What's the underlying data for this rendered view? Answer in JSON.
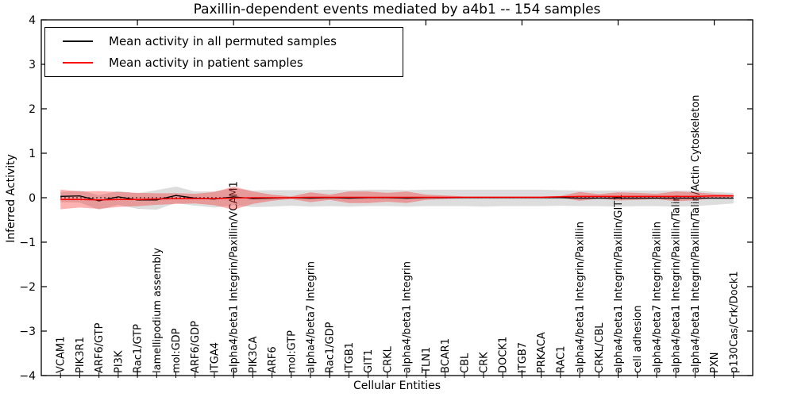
{
  "chart_data": {
    "type": "line",
    "title": "Paxillin-dependent events mediated by a4b1 -- 154 samples",
    "xlabel": "Cellular Entities",
    "ylabel": "Inferred Activity",
    "ylim": [
      -4,
      4
    ],
    "xlim": [
      0,
      37
    ],
    "grid": false,
    "legend_position": "upper-left",
    "yticks": {
      "values": [
        4,
        3,
        2,
        1,
        0,
        -1,
        -2,
        -3,
        -4
      ],
      "labels": [
        "4",
        "3",
        "2",
        "1",
        "0",
        "−1",
        "−2",
        "−3",
        "−4"
      ]
    },
    "x_major_ticks": [
      5,
      10,
      15,
      20,
      25,
      30,
      35
    ],
    "zero_line": {
      "y": 0,
      "style": "dotted",
      "color": "#000000"
    },
    "categories": [
      "VCAM1",
      "PIK3R1",
      "ARF6/GTP",
      "PI3K",
      "Rac1/GTP",
      "lamellipodium assembly",
      "mol:GDP",
      "ARF6/GDP",
      "ITGA4",
      "alpha4/beta1 Integrin/Paxillin/VCAM1",
      "PIK3CA",
      "ARF6",
      "mol:GTP",
      "alpha4/beta7 Integrin",
      "Rac1/GDP",
      "ITGB1",
      "GIT1",
      "CRKL",
      "alpha4/beta1 Integrin",
      "TLN1",
      "BCAR1",
      "CBL",
      "CRK",
      "DOCK1",
      "ITGB7",
      "PRKACA",
      "RAC1",
      "alpha4/beta1 Integrin/Paxillin",
      "CRKL/CBL",
      "alpha4/beta1 Integrin/Paxillin/GIT1",
      "cell adhesion",
      "alpha4/beta7 Integrin/Paxillin",
      "alpha4/beta1 Integrin/Paxillin/Talin",
      "alpha4/beta1 Integrin/Paxillin/Talin/Actin Cytoskeleton",
      "PXN",
      "p130Cas/Crk/Dock1"
    ],
    "series": [
      {
        "name": "Mean activity in all permuted samples",
        "color": "#000000",
        "values": [
          0.03,
          0.04,
          -0.07,
          0.02,
          -0.05,
          -0.05,
          0.05,
          -0.01,
          -0.03,
          0.02,
          -0.02,
          -0.01,
          0.0,
          -0.01,
          0.0,
          -0.01,
          0.0,
          0.0,
          -0.01,
          0.0,
          0.0,
          0.0,
          0.0,
          0.0,
          0.0,
          0.0,
          0.0,
          -0.01,
          -0.01,
          -0.01,
          -0.01,
          -0.01,
          -0.01,
          -0.01,
          -0.01,
          -0.01
        ]
      },
      {
        "name": "Mean activity in patient samples",
        "color": "#ff0000",
        "values": [
          -0.04,
          -0.04,
          -0.05,
          -0.04,
          -0.04,
          -0.03,
          -0.02,
          -0.02,
          -0.02,
          -0.01,
          0.0,
          0.0,
          0.0,
          0.01,
          0.01,
          0.01,
          0.01,
          0.01,
          0.01,
          0.01,
          0.01,
          0.01,
          0.01,
          0.01,
          0.01,
          0.01,
          0.02,
          0.03,
          0.03,
          0.03,
          0.03,
          0.03,
          0.03,
          0.03,
          0.04,
          0.04
        ]
      }
    ],
    "bands": [
      {
        "name": "permuted-samples-spread",
        "color": "#808080",
        "opacity": 0.27,
        "upper": [
          0.13,
          0.16,
          0.06,
          0.15,
          0.1,
          0.17,
          0.25,
          0.14,
          0.14,
          0.21,
          0.16,
          0.17,
          0.17,
          0.17,
          0.18,
          0.17,
          0.18,
          0.18,
          0.17,
          0.18,
          0.18,
          0.18,
          0.18,
          0.18,
          0.18,
          0.18,
          0.17,
          0.16,
          0.16,
          0.16,
          0.16,
          0.16,
          0.16,
          0.16,
          0.13,
          0.11
        ],
        "lower": [
          -0.1,
          -0.11,
          -0.27,
          -0.16,
          -0.25,
          -0.27,
          -0.12,
          -0.18,
          -0.22,
          -0.17,
          -0.21,
          -0.2,
          -0.18,
          -0.2,
          -0.19,
          -0.2,
          -0.19,
          -0.19,
          -0.2,
          -0.19,
          -0.19,
          -0.19,
          -0.2,
          -0.19,
          -0.19,
          -0.19,
          -0.18,
          -0.19,
          -0.19,
          -0.2,
          -0.19,
          -0.19,
          -0.2,
          -0.19,
          -0.16,
          -0.13
        ]
      },
      {
        "name": "patient-samples-spread",
        "color": "#ff0000",
        "opacity": 0.3,
        "upper": [
          0.18,
          0.14,
          0.15,
          0.13,
          0.11,
          0.1,
          0.1,
          0.09,
          0.13,
          0.25,
          0.14,
          0.07,
          0.03,
          0.12,
          0.07,
          0.14,
          0.14,
          0.11,
          0.14,
          0.07,
          0.05,
          0.03,
          0.03,
          0.03,
          0.03,
          0.03,
          0.04,
          0.13,
          0.08,
          0.12,
          0.11,
          0.09,
          0.14,
          0.12,
          0.09,
          0.07
        ],
        "lower": [
          -0.26,
          -0.22,
          -0.25,
          -0.21,
          -0.19,
          -0.16,
          -0.14,
          -0.13,
          -0.17,
          -0.27,
          -0.14,
          -0.07,
          -0.03,
          -0.1,
          -0.05,
          -0.12,
          -0.12,
          -0.09,
          -0.12,
          -0.05,
          -0.03,
          -0.01,
          -0.01,
          -0.01,
          -0.01,
          -0.01,
          0.0,
          -0.07,
          -0.02,
          -0.06,
          -0.05,
          -0.03,
          -0.08,
          -0.06,
          -0.01,
          0.01
        ]
      }
    ]
  }
}
